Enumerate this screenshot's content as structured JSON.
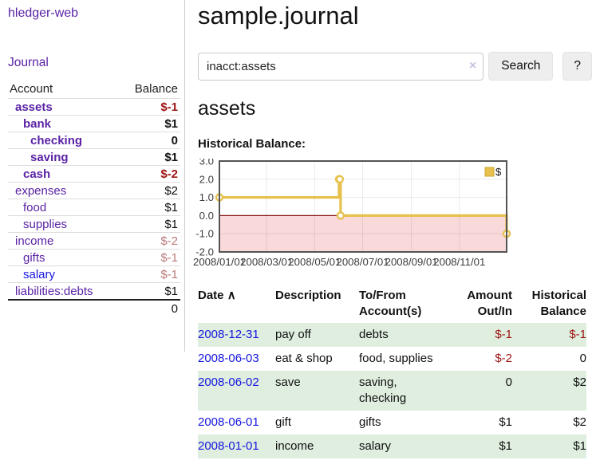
{
  "sidebar": {
    "brand": "hledger-web",
    "nav_journal": "Journal",
    "table": {
      "account_header": "Account",
      "balance_header": "Balance",
      "rows": [
        {
          "account": "assets",
          "balance": "$-1",
          "indent": 0,
          "bold": true,
          "neg": "strong",
          "link": "purple"
        },
        {
          "account": "bank",
          "balance": "$1",
          "indent": 1,
          "bold": true,
          "neg": "",
          "link": "purple"
        },
        {
          "account": "checking",
          "balance": "0",
          "indent": 2,
          "bold": true,
          "neg": "",
          "link": "purple"
        },
        {
          "account": "saving",
          "balance": "$1",
          "indent": 2,
          "bold": true,
          "neg": "",
          "link": "purple"
        },
        {
          "account": "cash",
          "balance": "$-2",
          "indent": 1,
          "bold": true,
          "neg": "strong",
          "link": "purple"
        },
        {
          "account": "expenses",
          "balance": "$2",
          "indent": 0,
          "bold": false,
          "neg": "",
          "link": "purple"
        },
        {
          "account": "food",
          "balance": "$1",
          "indent": 1,
          "bold": false,
          "neg": "",
          "link": "purple"
        },
        {
          "account": "supplies",
          "balance": "$1",
          "indent": 1,
          "bold": false,
          "neg": "",
          "link": "purple"
        },
        {
          "account": "income",
          "balance": "$-2",
          "indent": 0,
          "bold": false,
          "neg": "soft",
          "link": "purple"
        },
        {
          "account": "gifts",
          "balance": "$-1",
          "indent": 1,
          "bold": false,
          "neg": "soft",
          "link": "purple"
        },
        {
          "account": "salary",
          "balance": "$-1",
          "indent": 1,
          "bold": false,
          "neg": "soft",
          "link": "blue"
        },
        {
          "account": "liabilities:debts",
          "balance": "$1",
          "indent": 0,
          "bold": false,
          "neg": "",
          "link": "purple"
        }
      ],
      "total": "0"
    }
  },
  "header": {
    "title": "sample.journal"
  },
  "search": {
    "value": "inacct:assets",
    "clear_icon": "×",
    "button_label": "Search",
    "help_label": "?"
  },
  "account_page": {
    "title": "assets",
    "chart_label": "Historical Balance:"
  },
  "chart_data": {
    "type": "line",
    "step": true,
    "title": "Historical Balance",
    "series": [
      {
        "name": "$",
        "points": [
          [
            "2008-01-01",
            1
          ],
          [
            "2008-06-01",
            2
          ],
          [
            "2008-06-02",
            2
          ],
          [
            "2008-06-03",
            0
          ],
          [
            "2008-12-31",
            -1
          ]
        ]
      }
    ],
    "xrange": [
      "2008-01-01",
      "2008-12-31"
    ],
    "ylim": [
      -2,
      3
    ],
    "yticks": [
      {
        "value": 3,
        "label": "3.0"
      },
      {
        "value": 2,
        "label": "2.0"
      },
      {
        "value": 1,
        "label": "1.0"
      },
      {
        "value": 0,
        "label": "0.0"
      },
      {
        "value": -1,
        "label": "-1.0"
      },
      {
        "value": -2,
        "label": "-2.0"
      }
    ],
    "xticks": [
      {
        "date": "2008-01-01",
        "label": "2008/01/01"
      },
      {
        "date": "2008-03-01",
        "label": "2008/03/01"
      },
      {
        "date": "2008-05-01",
        "label": "2008/05/01"
      },
      {
        "date": "2008-07-01",
        "label": "2008/07/01"
      },
      {
        "date": "2008-09-01",
        "label": "2008/09/01"
      },
      {
        "date": "2008-11-01",
        "label": "2008/11/01"
      }
    ],
    "legend": {
      "label": "$",
      "position": "top-right"
    },
    "grid": true,
    "colors": {
      "line": "#e6c14e",
      "marker_fill": "#ffffff",
      "negative_region": "#f9d9d9",
      "zero_line": "#8b1a1a",
      "border": "#545454",
      "grid": "rgba(0,0,0,0.08)",
      "tick_text": "#3c3c3c"
    }
  },
  "register": {
    "sort_icon": "∧",
    "columns": [
      {
        "label": "Date",
        "align": "left"
      },
      {
        "label": "Description",
        "align": "left"
      },
      {
        "label": "To/From Account(s)",
        "align": "left"
      },
      {
        "label": "Amount Out/In",
        "align": "right"
      },
      {
        "label": "Historical Balance",
        "align": "right"
      }
    ],
    "rows": [
      {
        "date": "2008-12-31",
        "description": "pay off",
        "accounts": "debts",
        "amount": "$-1",
        "balance": "$-1",
        "amount_neg": true,
        "balance_neg": true
      },
      {
        "date": "2008-06-03",
        "description": "eat & shop",
        "accounts": "food, supplies",
        "amount": "$-2",
        "balance": "0",
        "amount_neg": true,
        "balance_neg": false
      },
      {
        "date": "2008-06-02",
        "description": "save",
        "accounts": "saving, checking",
        "amount": "0",
        "balance": "$2",
        "amount_neg": false,
        "balance_neg": false
      },
      {
        "date": "2008-06-01",
        "description": "gift",
        "accounts": "gifts",
        "amount": "$1",
        "balance": "$2",
        "amount_neg": false,
        "balance_neg": false
      },
      {
        "date": "2008-01-01",
        "description": "income",
        "accounts": "salary",
        "amount": "$1",
        "balance": "$1",
        "amount_neg": false,
        "balance_neg": false
      }
    ]
  }
}
